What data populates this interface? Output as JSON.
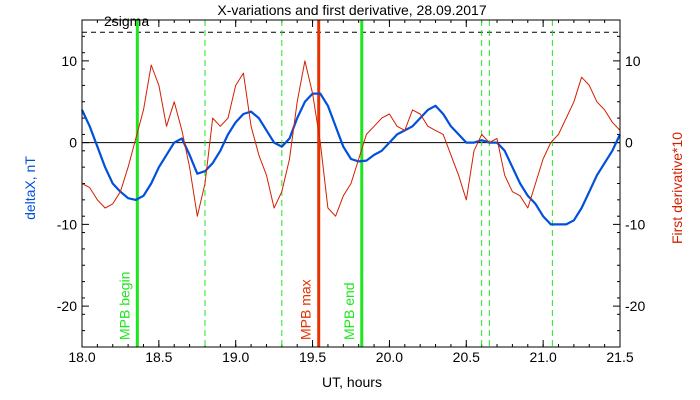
{
  "chart_data": {
    "type": "line",
    "title": "X-variations and first derivative, 28.09.2017",
    "xlabel": "UT, hours",
    "ylabel_left": "deltaX, nT",
    "ylabel_right": "First derivative*10",
    "xlim": [
      18.0,
      21.5
    ],
    "ylim": [
      -25,
      15
    ],
    "x_ticks": [
      "18.0",
      "18.5",
      "19.0",
      "19.5",
      "20.0",
      "20.5",
      "21.0",
      "21.5"
    ],
    "y_ticks": [
      "-20",
      "-10",
      "0",
      "10"
    ],
    "threshold": {
      "label": "2sigma",
      "value": 13.5
    },
    "colors": {
      "deltaX": "#0050dc",
      "derivative": "#d22000",
      "mpb": "#1ee61e",
      "mpb_max": "#e63200"
    },
    "markers": [
      {
        "x": 18.36,
        "label": "MPB begin",
        "style": "solid",
        "color": "#1ee61e"
      },
      {
        "x": 19.54,
        "label": "MPB max",
        "style": "solid",
        "color": "#e63200"
      },
      {
        "x": 19.82,
        "label": "MPB end",
        "style": "solid",
        "color": "#1ee61e"
      },
      {
        "x": 18.8,
        "label": "",
        "style": "dashed",
        "color": "#1ee61e"
      },
      {
        "x": 19.3,
        "label": "",
        "style": "dashed",
        "color": "#1ee61e"
      },
      {
        "x": 20.6,
        "label": "",
        "style": "dashed",
        "color": "#1ee61e"
      },
      {
        "x": 20.65,
        "label": "",
        "style": "dashed",
        "color": "#1ee61e"
      },
      {
        "x": 21.06,
        "label": "",
        "style": "dashed",
        "color": "#1ee61e"
      }
    ],
    "series": [
      {
        "key": "deltaX",
        "x": [
          18.0,
          18.05,
          18.1,
          18.15,
          18.2,
          18.25,
          18.3,
          18.35,
          18.4,
          18.45,
          18.5,
          18.55,
          18.6,
          18.65,
          18.7,
          18.75,
          18.8,
          18.85,
          18.9,
          18.95,
          19.0,
          19.05,
          19.1,
          19.15,
          19.2,
          19.25,
          19.3,
          19.35,
          19.4,
          19.45,
          19.5,
          19.55,
          19.6,
          19.65,
          19.7,
          19.75,
          19.8,
          19.85,
          19.9,
          19.95,
          20.0,
          20.05,
          20.1,
          20.15,
          20.2,
          20.25,
          20.3,
          20.35,
          20.4,
          20.45,
          20.5,
          20.55,
          20.6,
          20.65,
          20.7,
          20.75,
          20.8,
          20.85,
          20.9,
          20.95,
          21.0,
          21.05,
          21.1,
          21.15,
          21.2,
          21.25,
          21.3,
          21.35,
          21.4,
          21.45,
          21.5
        ],
        "values": [
          4.0,
          2.0,
          -0.5,
          -3.0,
          -5.0,
          -6.0,
          -6.8,
          -7.0,
          -6.5,
          -5.0,
          -3.0,
          -1.5,
          0.0,
          0.5,
          -1.5,
          -3.8,
          -3.5,
          -2.5,
          -1.0,
          1.0,
          2.5,
          3.5,
          3.8,
          3.0,
          1.5,
          0.0,
          -0.5,
          0.5,
          3.0,
          5.0,
          6.0,
          6.0,
          4.5,
          2.0,
          -0.5,
          -2.0,
          -2.3,
          -2.2,
          -1.5,
          -1.0,
          0.0,
          1.0,
          1.5,
          2.0,
          3.0,
          4.0,
          4.5,
          3.5,
          2.0,
          1.0,
          0.0,
          0.0,
          0.3,
          0.0,
          0.0,
          -1.0,
          -3.0,
          -5.0,
          -6.5,
          -7.5,
          -9.0,
          -10.0,
          -10.0,
          -10.0,
          -9.5,
          -8.0,
          -6.0,
          -4.0,
          -2.5,
          -1.0,
          1.0
        ]
      },
      {
        "key": "derivative",
        "x": [
          18.0,
          18.05,
          18.1,
          18.15,
          18.2,
          18.25,
          18.3,
          18.35,
          18.4,
          18.45,
          18.5,
          18.55,
          18.6,
          18.65,
          18.7,
          18.75,
          18.8,
          18.85,
          18.9,
          18.95,
          19.0,
          19.05,
          19.1,
          19.15,
          19.2,
          19.25,
          19.3,
          19.35,
          19.4,
          19.45,
          19.5,
          19.55,
          19.6,
          19.65,
          19.7,
          19.75,
          19.8,
          19.85,
          19.9,
          19.95,
          20.0,
          20.05,
          20.1,
          20.15,
          20.2,
          20.25,
          20.3,
          20.35,
          20.4,
          20.45,
          20.5,
          20.55,
          20.6,
          20.65,
          20.7,
          20.75,
          20.8,
          20.85,
          20.9,
          20.95,
          21.0,
          21.05,
          21.1,
          21.15,
          21.2,
          21.25,
          21.3,
          21.35,
          21.4,
          21.45,
          21.5
        ],
        "values": [
          -5.0,
          -5.5,
          -7.0,
          -8.0,
          -7.5,
          -6.0,
          -3.0,
          0.5,
          4.0,
          9.5,
          7.0,
          2.0,
          5.0,
          1.5,
          -3.0,
          -9.0,
          -5.0,
          3.0,
          2.0,
          3.0,
          7.0,
          8.5,
          2.0,
          -1.5,
          -4.0,
          -8.0,
          -6.0,
          -2.0,
          5.0,
          10.0,
          6.0,
          0.0,
          -8.0,
          -9.0,
          -6.5,
          -5.0,
          -2.0,
          1.0,
          2.0,
          3.0,
          3.5,
          2.0,
          1.5,
          4.0,
          3.5,
          2.0,
          1.5,
          1.0,
          -1.5,
          -4.0,
          -7.0,
          -1.0,
          1.0,
          0.0,
          0.5,
          -4.0,
          -6.0,
          -6.5,
          -8.0,
          -5.0,
          -2.0,
          0.0,
          1.0,
          3.0,
          5.0,
          8.0,
          7.0,
          5.0,
          4.0,
          2.5,
          1.5
        ]
      }
    ]
  }
}
